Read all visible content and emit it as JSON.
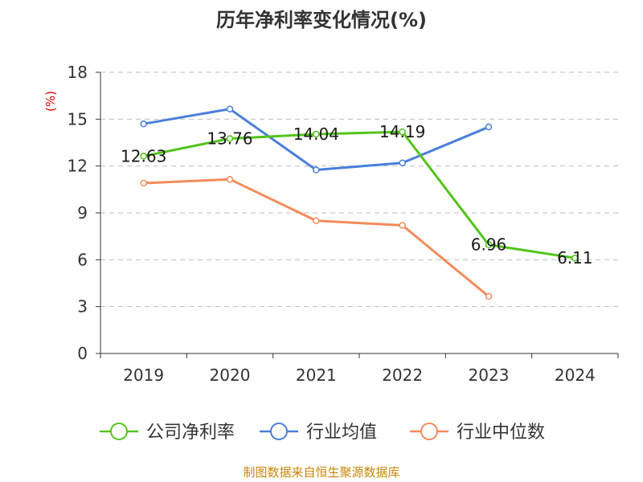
{
  "chart_data": {
    "type": "line",
    "title": "历年净利率变化情况(%)",
    "ylabel": "(%)",
    "xlabel": "",
    "categories": [
      "2019",
      "2020",
      "2021",
      "2022",
      "2023",
      "2024"
    ],
    "ylim": [
      0,
      18
    ],
    "yticks": [
      0,
      3,
      6,
      9,
      12,
      15,
      18
    ],
    "grid": true,
    "legend_position": "bottom",
    "series": [
      {
        "name": "公司净利率",
        "color": "#52c41a",
        "values": [
          12.63,
          13.76,
          14.04,
          14.19,
          6.96,
          6.11
        ],
        "labels": [
          "12.63",
          "13.76",
          "14.04",
          "14.19",
          "6.96",
          "6.11"
        ]
      },
      {
        "name": "行业均值",
        "color": "#4a7fdb",
        "values": [
          14.7,
          15.65,
          11.75,
          12.2,
          14.5,
          null
        ]
      },
      {
        "name": "行业中位数",
        "color": "#f28c5a",
        "values": [
          10.9,
          11.15,
          8.5,
          8.2,
          3.65,
          null
        ]
      }
    ],
    "source": "制图数据来自恒生聚源数据库"
  }
}
